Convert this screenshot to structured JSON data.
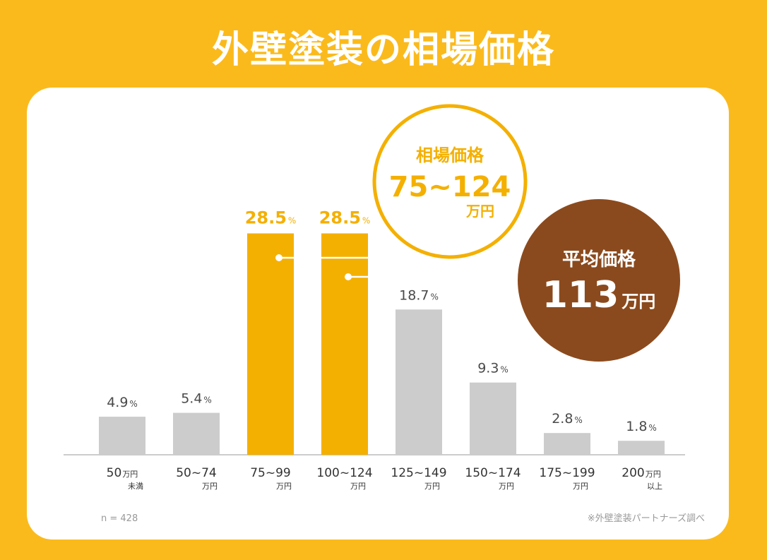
{
  "title": "外壁塗装の相場価格",
  "sample_note": "n = 428",
  "source_note": "※外壁塗装パートナーズ調べ",
  "callout_range": {
    "label": "相場価格",
    "value": "75~124",
    "unit": "万円"
  },
  "callout_average": {
    "label": "平均価格",
    "value": "113",
    "unit": "万円"
  },
  "colors": {
    "background": "#FBBA1C",
    "highlight": "#F4B000",
    "bar_default": "#CCCCCC",
    "average_circle": "#8B4A1D",
    "value_text": "#4A4A4A"
  },
  "chart_data": {
    "type": "bar",
    "title": "外壁塗装の相場価格",
    "value_suffix": "%",
    "ylim": [
      0,
      30
    ],
    "grid": false,
    "categories": [
      {
        "main": "50",
        "sub_inline": "万円",
        "sub_below": "未満"
      },
      {
        "main": "50~74",
        "sub_inline": "",
        "sub_below": "万円"
      },
      {
        "main": "75~99",
        "sub_inline": "",
        "sub_below": "万円"
      },
      {
        "main": "100~124",
        "sub_inline": "",
        "sub_below": "万円"
      },
      {
        "main": "125~149",
        "sub_inline": "",
        "sub_below": "万円"
      },
      {
        "main": "150~174",
        "sub_inline": "",
        "sub_below": "万円"
      },
      {
        "main": "175~199",
        "sub_inline": "",
        "sub_below": "万円"
      },
      {
        "main": "200",
        "sub_inline": "万円",
        "sub_below": "以上"
      }
    ],
    "values": [
      4.9,
      5.4,
      28.5,
      28.5,
      18.7,
      9.3,
      2.8,
      1.8
    ],
    "value_labels": [
      "4.9",
      "5.4",
      "28.5",
      "28.5",
      "18.7",
      "9.3",
      "2.8",
      "1.8"
    ],
    "highlighted": [
      false,
      false,
      true,
      true,
      false,
      false,
      false,
      false
    ]
  }
}
